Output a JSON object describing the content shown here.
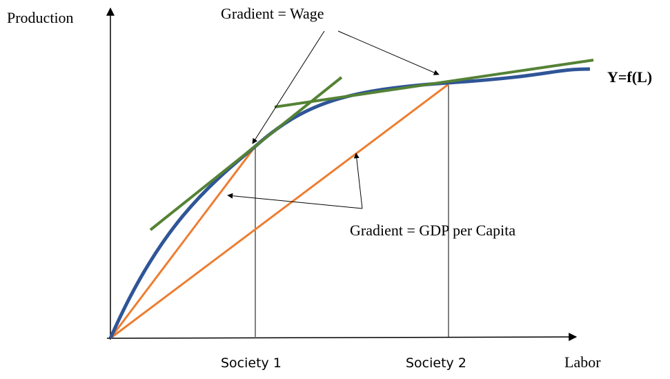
{
  "axes": {
    "y_label": "Production",
    "x_label": "Labor"
  },
  "curve_label": "Y=f(L)",
  "annotations": [
    "Gradient = Wage",
    "Gradient = GDP per Capita"
  ],
  "points": [
    "Society 1",
    "Society 2"
  ]
}
